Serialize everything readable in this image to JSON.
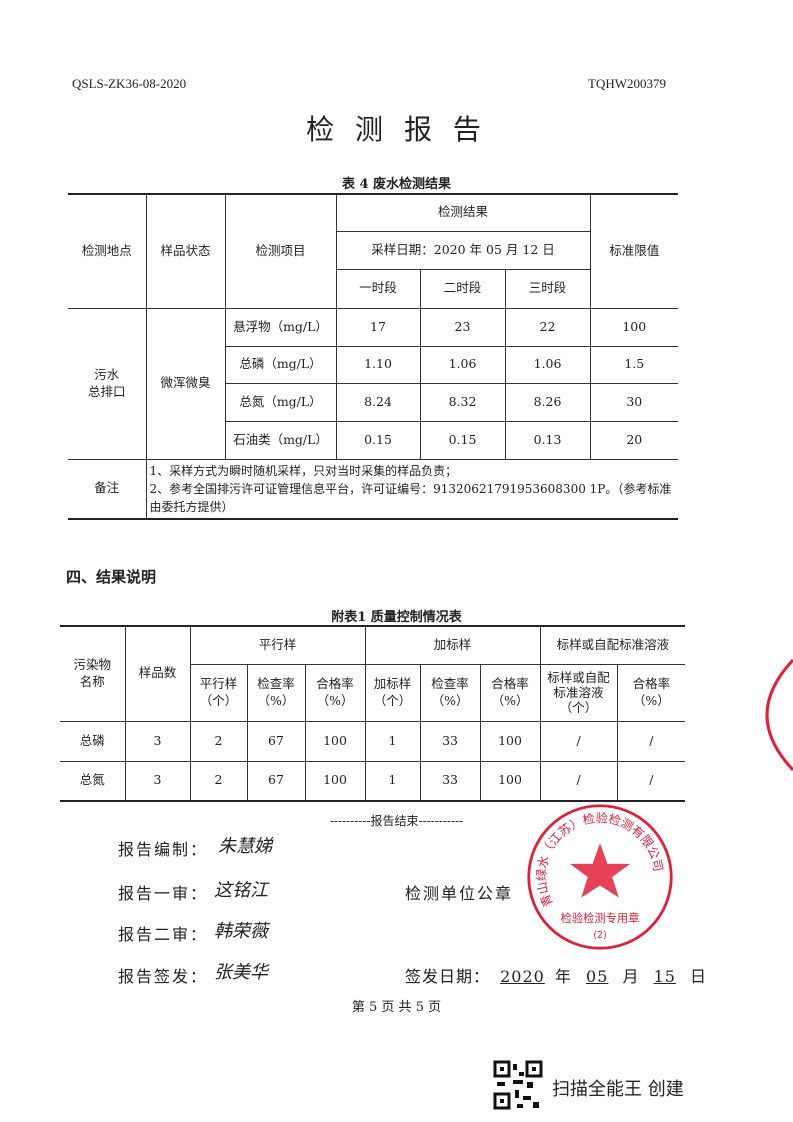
{
  "header": {
    "left_code": "QSLS-ZK36-08-2020",
    "right_code": "TQHW200379",
    "title": "检 测 报 告"
  },
  "table4": {
    "caption": "表 4  废水检测结果",
    "headers": {
      "location": "检测地点",
      "sample_state": "样品状态",
      "item": "检测项目",
      "result": "检测结果",
      "sampling_date": "采样日期：2020 年 05 月 12 日",
      "periods": [
        "一时段",
        "二时段",
        "三时段"
      ],
      "limit": "标准限值"
    },
    "location": "污水\n总排口",
    "sample_state": "微浑微臭",
    "rows": [
      {
        "item": "悬浮物（mg/L）",
        "values": [
          "17",
          "23",
          "22"
        ],
        "limit": "100"
      },
      {
        "item": "总磷（mg/L）",
        "values": [
          "1.10",
          "1.06",
          "1.06"
        ],
        "limit": "1.5"
      },
      {
        "item": "总氮（mg/L）",
        "values": [
          "8.24",
          "8.32",
          "8.26"
        ],
        "limit": "30"
      },
      {
        "item": "石油类（mg/L）",
        "values": [
          "0.15",
          "0.15",
          "0.13"
        ],
        "limit": "20"
      }
    ],
    "remark_label": "备注",
    "remark_lines": [
      "1、采样方式为瞬时随机采样，只对当时采集的样品负责；",
      "2、参考全国排污许可证管理信息平台，许可证编号：91320621791953608300 1P。（参考标准由委托方提供）"
    ]
  },
  "section4": {
    "title": "四、结果说明"
  },
  "table2": {
    "caption": "附表1  质量控制情况表",
    "headers": {
      "pollutant": "污染物\n名称",
      "sample_count": "样品数",
      "parallel": "平行样",
      "spiked": "加标样",
      "standard": "标样或自配标准溶液",
      "sub": [
        "平行样\n（个）",
        "检查率\n（%）",
        "合格率\n（%）",
        "加标样\n（个）",
        "检查率\n（%）",
        "合格率\n（%）",
        "标样或自配\n标准溶液\n（个）",
        "合格率\n（%）"
      ]
    },
    "rows": [
      {
        "name": "总磷",
        "cells": [
          "3",
          "2",
          "67",
          "100",
          "1",
          "33",
          "100",
          "/",
          "/"
        ]
      },
      {
        "name": "总氮",
        "cells": [
          "3",
          "2",
          "67",
          "100",
          "1",
          "33",
          "100",
          "/",
          "/"
        ]
      }
    ]
  },
  "end_text": "----------报告结束-----------",
  "signatures": {
    "compiler_label": "报告编制：",
    "compiler": "朱慧娣",
    "review1_label": "报告一审：",
    "review1": "这铭江",
    "review2_label": "报告二审：",
    "review2": "韩荣薇",
    "issuer_label": "报告签发：",
    "issuer": "张美华",
    "seal_label": "检测单位公章",
    "issue_date_label": "签发日期：",
    "year": "2020",
    "year_unit": "年",
    "month": "05",
    "month_unit": "月",
    "day": "15",
    "day_unit": "日"
  },
  "seal": {
    "text": "青山绿水（江苏）检验检测有限公司",
    "sub": "检验检测专用章",
    "number": "(2)",
    "color": "#e0203a"
  },
  "page_number": "第 5 页 共 5 页",
  "scanner": {
    "label": "扫描全能王 创建"
  }
}
